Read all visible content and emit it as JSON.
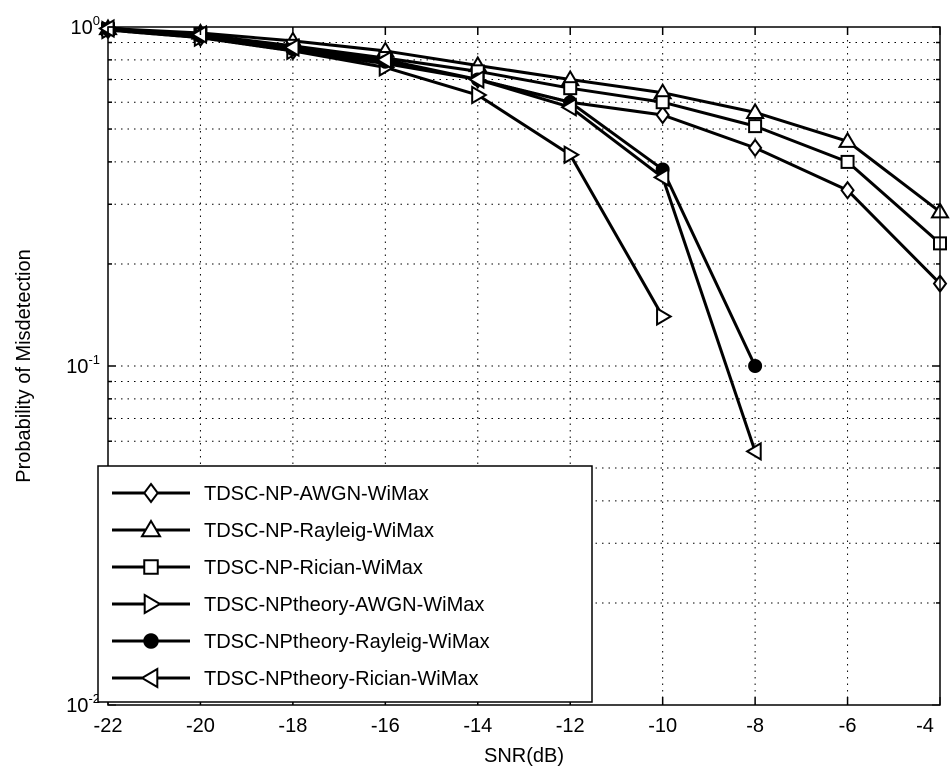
{
  "chart_data": {
    "type": "line",
    "title": "",
    "xlabel": "SNR(dB)",
    "ylabel": "Probability of Misdetection",
    "xlim": [
      -22,
      -4
    ],
    "ylim": [
      0.01,
      1
    ],
    "yscale": "log",
    "grid": true,
    "legend_position": "bottom-left",
    "x_ticks": [
      "-22",
      "-20",
      "-18",
      "-16",
      "-14",
      "-12",
      "-10",
      "-8",
      "-6",
      "-4"
    ],
    "y_ticks": [
      {
        "base": "10",
        "exp": "-2"
      },
      {
        "base": "10",
        "exp": "-1"
      },
      {
        "base": "10",
        "exp": "0"
      }
    ],
    "series": [
      {
        "name": "TDSC-NP-AWGN-WiMax",
        "marker": "diamond",
        "x": [
          -22,
          -20,
          -18,
          -16,
          -14,
          -12,
          -10,
          -8,
          -6,
          -4
        ],
        "y": [
          0.98,
          0.93,
          0.85,
          0.78,
          0.7,
          0.6,
          0.55,
          0.44,
          0.33,
          0.175
        ]
      },
      {
        "name": "TDSC-NP-Rayleig-WiMax",
        "marker": "triangle-up",
        "x": [
          -22,
          -20,
          -18,
          -16,
          -14,
          -12,
          -10,
          -8,
          -6,
          -4
        ],
        "y": [
          0.99,
          0.96,
          0.91,
          0.85,
          0.77,
          0.7,
          0.64,
          0.56,
          0.46,
          0.285
        ]
      },
      {
        "name": "TDSC-NP-Rician-WiMax",
        "marker": "square",
        "x": [
          -22,
          -20,
          -18,
          -16,
          -14,
          -12,
          -10,
          -8,
          -6,
          -4
        ],
        "y": [
          0.985,
          0.95,
          0.88,
          0.81,
          0.74,
          0.66,
          0.6,
          0.51,
          0.4,
          0.23
        ]
      },
      {
        "name": "TDSC-NPtheory-AWGN-WiMax",
        "marker": "triangle-right",
        "x": [
          -22,
          -20,
          -18,
          -16,
          -14,
          -12,
          -10
        ],
        "y": [
          0.98,
          0.93,
          0.85,
          0.76,
          0.63,
          0.42,
          0.14
        ]
      },
      {
        "name": "TDSC-NPtheory-Rayleig-WiMax",
        "marker": "circle",
        "x": [
          -22,
          -20,
          -18,
          -16,
          -14,
          -12,
          -10,
          -8
        ],
        "y": [
          0.985,
          0.94,
          0.86,
          0.79,
          0.7,
          0.6,
          0.38,
          0.1
        ]
      },
      {
        "name": "TDSC-NPtheory-Rician-WiMax",
        "marker": "triangle-left",
        "x": [
          -22,
          -20,
          -18,
          -16,
          -14,
          -12,
          -10,
          -8
        ],
        "y": [
          0.99,
          0.95,
          0.87,
          0.8,
          0.7,
          0.58,
          0.36,
          0.056
        ]
      }
    ]
  }
}
